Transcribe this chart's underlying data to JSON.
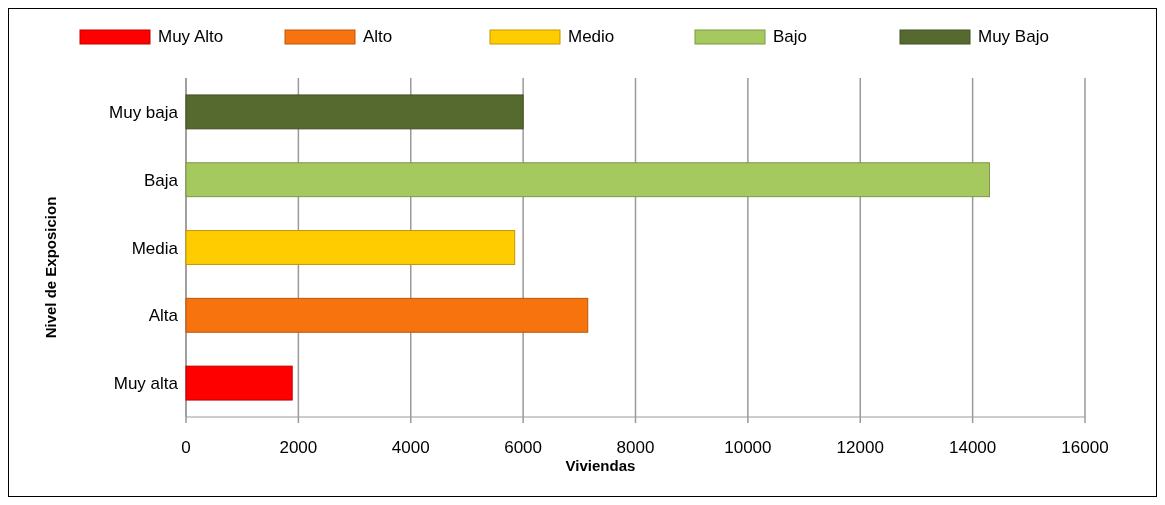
{
  "chart_data": {
    "type": "bar",
    "orientation": "horizontal",
    "xlabel": "Viviendas",
    "ylabel": "Nivel de Exposicion",
    "categories": [
      "Muy baja",
      "Baja",
      "Media",
      "Alta",
      "Muy alta"
    ],
    "series": [
      {
        "name": "Muy Alto",
        "color": "#ff0000",
        "values": [
          null,
          null,
          null,
          null,
          1890
        ]
      },
      {
        "name": "Alto",
        "color": "#f7730d",
        "values": [
          null,
          null,
          null,
          7150,
          null
        ]
      },
      {
        "name": "Medio",
        "color": "#ffcc00",
        "values": [
          null,
          null,
          5850,
          null,
          null
        ]
      },
      {
        "name": "Bajo",
        "color": "#a6c95f",
        "values": [
          null,
          14300,
          null,
          null,
          null
        ]
      },
      {
        "name": "Muy Bajo",
        "color": "#566a30",
        "values": [
          6000,
          null,
          null,
          null,
          null
        ]
      }
    ],
    "xlim": [
      0,
      16000
    ],
    "xticks": [
      0,
      2000,
      4000,
      6000,
      8000,
      10000,
      12000,
      14000,
      16000
    ],
    "grid": "x",
    "legend": "top"
  }
}
